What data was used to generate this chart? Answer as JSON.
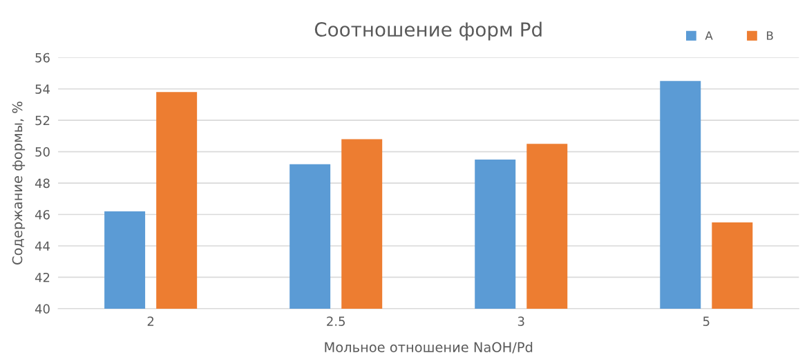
{
  "chart_data": {
    "type": "bar",
    "title": "Соотношение форм Pd",
    "xlabel": "Мольное отношение NaOH/Pd",
    "ylabel": "Содержание формы, %",
    "categories": [
      "2",
      "2.5",
      "3",
      "5"
    ],
    "series": [
      {
        "name": "A",
        "color": "#5b9bd5",
        "values": [
          46.2,
          49.2,
          49.5,
          54.5
        ]
      },
      {
        "name": "B",
        "color": "#ed7d31",
        "values": [
          53.8,
          50.8,
          50.5,
          45.5
        ]
      }
    ],
    "ylim": [
      40,
      56
    ],
    "yticks": [
      40,
      42,
      44,
      46,
      48,
      50,
      52,
      54,
      56
    ],
    "grid": "y",
    "legend": "top right"
  }
}
